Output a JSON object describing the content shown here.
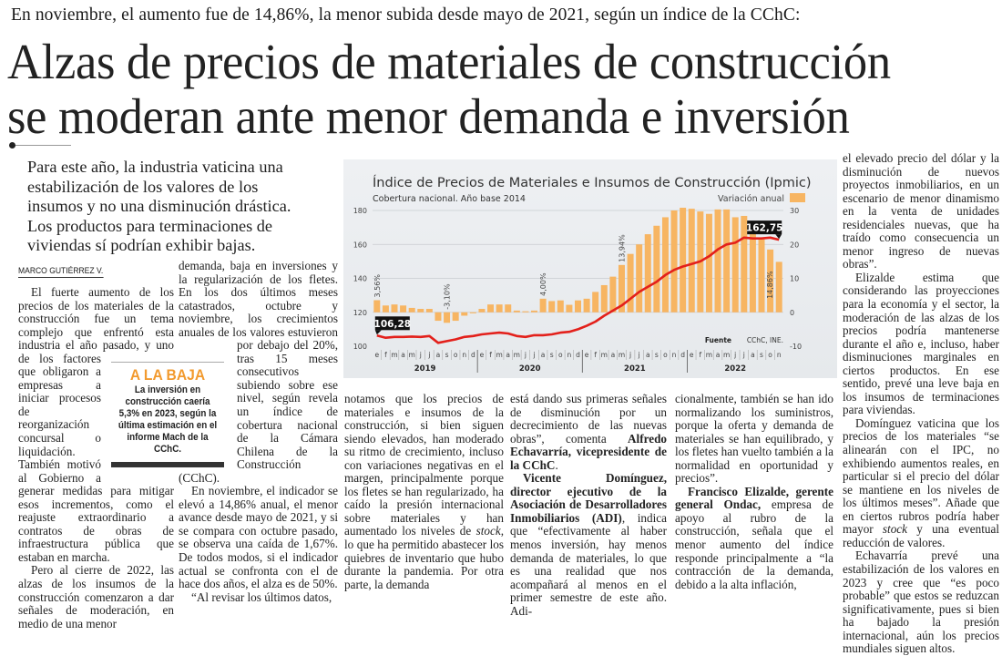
{
  "article": {
    "kicker": "En noviembre, el aumento fue de 14,86%, la menor subida desde mayo de 2021, según un índice de la CChC:",
    "headline_lines": [
      "Alzas de precios de materiales de construcción",
      "se moderan ante menor demanda e inversión"
    ],
    "deck": "Para este año, la industria vaticina una estabilización de los valores de los insumos y no una disminución drástica. Los productos para terminaciones de viviendas sí podrían exhibir bajas.",
    "byline": "MARCO GUTIÉRREZ V.",
    "sidebar": {
      "heading": "A LA BAJA",
      "text": "La inversión en construcción caería 5,3% en 2023, según la última estimación en el informe Mach de la CChC.",
      "accent": "#f29a2e"
    },
    "columns": [
      [
        [
          {
            "t": "El fuerte aumento de los precios de los materiales de la construcción fue un tema complejo que enfrentó esta industria el año pasado, y uno de los factores que obligaron a empresas a iniciar procesos de reorganización concursal o liquidación. También motivó al Gobierno a generar medidas para mitigar esos incrementos, como el reajuste extraordinario a contratos de obras de infraestructura pública que estaban en marcha."
          }
        ],
        [
          {
            "t": "Pero al cierre de 2022, las alzas de los insumos de la construcción comenzaron a dar señales de moderación, en medio de una menor"
          }
        ]
      ],
      [
        [
          {
            "t": "demanda, baja en inversiones y la regularización de los fletes. En los dos últimos meses catastrados, octubre y noviembre, los crecimientos anuales de los valores estuvieron por debajo del 20%, tras 15 meses consecutivos subiendo sobre ese nivel, según revela un índice de cobertura nacional de la Cámara Chilena de la Construcción (CChC)."
          }
        ],
        [
          {
            "t": "En noviembre, el indicador se elevó a 14,86% anual, el menor avance desde mayo de 2021, y si se compara con octubre pasado, se observa una caída de 1,67%. De todos modos, si el indicador actual se confronta con el de hace dos años, el alza es de 50%."
          }
        ],
        [
          {
            "t": "“Al revisar los últimos datos,"
          }
        ]
      ],
      [
        [
          {
            "t": "notamos que los precios de materiales e insumos de la construcción, si bien siguen siendo elevados, han moderado su ritmo de crecimiento, incluso con variaciones negativas en el margen, principalmente porque los fletes se han regularizado, ha caído la presión internacional sobre materiales y han aumentado los niveles de "
          },
          {
            "t": "stock",
            "i": true
          },
          {
            "t": ", lo que ha permitido abastecer los quiebres de inventario que hubo durante la pandemia. Por otra parte, la demanda"
          }
        ]
      ],
      [
        [
          {
            "t": "está dando sus primeras señales de disminución por un decrecimiento de las nuevas obras”, comenta "
          },
          {
            "t": "Alfredo Echavarría, vicepresidente de la CChC",
            "b": true
          },
          {
            "t": "."
          }
        ],
        [
          {
            "t": "Vicente Domínguez, director ejecutivo de la Asociación de Desarrolladores Inmobiliarios (ADI)",
            "b": true
          },
          {
            "t": ", indica que “efectivamente al haber menos inversión, hay menos demanda de materiales, lo que es una realidad que nos acompañará al menos en el primer semestre de este año. Adi-"
          }
        ]
      ],
      [
        [
          {
            "t": "cionalmente, también se han ido normalizando los suministros, porque la oferta y demanda de materiales se han equilibrado, y los fletes han vuelto también a la normalidad en oportunidad y precios”."
          }
        ],
        [
          {
            "t": "Francisco Elizalde, gerente general Ondac,",
            "b": true
          },
          {
            "t": " empresa de apoyo al rubro de la construcción, señala que el menor aumento del índice responde principalmente a “la contracción de la demanda, debido a la alta inflación,"
          }
        ]
      ],
      [
        [
          {
            "t": "el elevado precio del dólar y la disminución de nuevos proyectos inmobiliarios, en un escenario de menor dinamismo en la venta de unidades residenciales nuevas, que ha traído como consecuencia un menor ingreso de nuevas obras”."
          }
        ],
        [
          {
            "t": "Elizalde estima que considerando las proyecciones para la economía y el sector, la moderación de las alzas de los precios podría mantenerse durante el año e, incluso, haber disminuciones marginales en ciertos productos. En ese sentido, prevé una leve baja en los insumos de terminaciones para viviendas."
          }
        ],
        [
          {
            "t": "Domínguez vaticina que los precios de los materiales “se alinearán con el IPC, no exhibiendo aumentos reales, en particular si el precio del dólar se mantiene en los niveles de los últimos meses”. Añade que en ciertos rubros podría haber mayor "
          },
          {
            "t": "stock",
            "i": true
          },
          {
            "t": " y una eventual reducción de valores."
          }
        ],
        [
          {
            "t": "Echavarría prevé una estabilización de los valores en 2023 y cree que “es poco probable” que estos se reduzcan significativamente, pues si bien ha bajado la presión internacional, aún los precios mundiales siguen altos."
          }
        ]
      ]
    ]
  },
  "chart_data": {
    "type": "bar+line",
    "title": "Índice de Precios de Materiales e Insumos de Construcción (Ipmic)",
    "subtitle": "Cobertura nacional. Año base 2014",
    "legend": "Variación anual",
    "source_label": "Fuente",
    "source": "CChC, INE.",
    "months": [
      "e",
      "f",
      "m",
      "a",
      "m",
      "j",
      "j",
      "a",
      "s",
      "o",
      "n",
      "d"
    ],
    "years": [
      "2019",
      "2020",
      "2021",
      "2022"
    ],
    "month_count_last_year": 11,
    "left_axis": {
      "ylim": [
        100,
        180
      ],
      "ticks": [
        "100",
        "120",
        "140",
        "160",
        "180"
      ]
    },
    "right_axis": {
      "ylim": [
        -10,
        30
      ],
      "ticks": [
        "-10",
        "0",
        "10",
        "20",
        "30"
      ]
    },
    "grid": true,
    "bar_color": "#f7b562",
    "line_color": "#e3201b",
    "bars_variacion_anual": [
      3.56,
      2,
      2.3,
      2,
      1.3,
      1,
      1,
      -2.5,
      -3.1,
      -2.5,
      -1,
      -0.3,
      1,
      2.3,
      2.3,
      2.3,
      0.5,
      0.3,
      0.5,
      4.0,
      3.3,
      3.5,
      2.2,
      3.5,
      4,
      6,
      8,
      10.5,
      13.94,
      17.2,
      20,
      23,
      25.5,
      28,
      30,
      30.8,
      30.5,
      29.7,
      29,
      30.3,
      30.3,
      28,
      28.4,
      24.8,
      21.5,
      18.5,
      14.86
    ],
    "line_indice": [
      106.28,
      105,
      105.5,
      105.5,
      105.7,
      105.5,
      106,
      102,
      103,
      104,
      105.5,
      106,
      107,
      107.5,
      108,
      107.5,
      106,
      105.5,
      106.5,
      106.5,
      107,
      108,
      108.5,
      110,
      112,
      114.5,
      118,
      121,
      124,
      128,
      132,
      135,
      138,
      142,
      145,
      147,
      148.5,
      150,
      153,
      157,
      160,
      161,
      164,
      163.5,
      163.5,
      164,
      162.75
    ],
    "bar_labels": [
      {
        "index": 0,
        "text": "3,56%"
      },
      {
        "index": 8,
        "text": "-3,10%"
      },
      {
        "index": 19,
        "text": "4,00%"
      },
      {
        "index": 28,
        "text": "13,94%"
      },
      {
        "index": 46,
        "text": "14,86%"
      }
    ],
    "callouts": [
      {
        "index": 0,
        "text": "106,28"
      },
      {
        "index": 46,
        "text": "162,75"
      }
    ]
  }
}
